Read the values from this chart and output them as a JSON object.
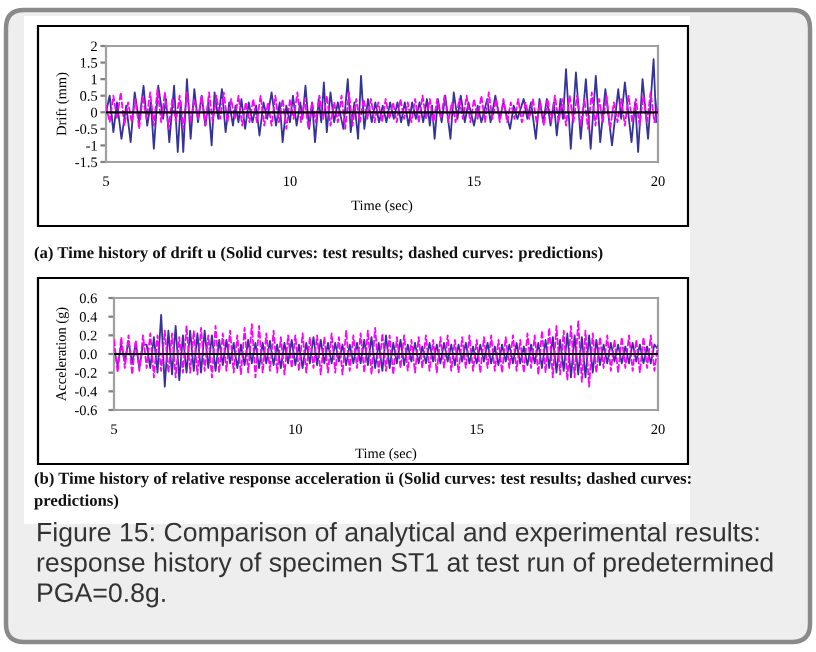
{
  "chart_data": [
    {
      "type": "line",
      "xlabel": "Time (sec)",
      "ylabel": "Drift (mm)",
      "xlim": [
        5,
        20
      ],
      "xticks": [
        5,
        10,
        15,
        20
      ],
      "ylim": [
        -1.5,
        2
      ],
      "yticks": [
        -1.5,
        -1,
        -0.5,
        0,
        0.5,
        1,
        1.5,
        2
      ],
      "line_style": "solid",
      "ref_lines": [
        {
          "axis": "y",
          "value": 0,
          "color": "#000000"
        }
      ],
      "annotations": [
        "(a) Time history of drift u (Solid curves: test results; dashed curves: predictions)"
      ],
      "x": [
        5,
        5.1,
        5.2,
        5.3,
        5.4,
        5.5,
        5.6,
        5.7,
        5.8,
        5.9,
        6,
        6.1,
        6.2,
        6.3,
        6.4,
        6.5,
        6.6,
        6.7,
        6.8,
        6.9,
        7,
        7.1,
        7.2,
        7.3,
        7.4,
        7.5,
        7.6,
        7.7,
        7.8,
        7.9,
        8,
        8.1,
        8.2,
        8.3,
        8.4,
        8.5,
        8.6,
        8.7,
        8.8,
        8.9,
        9,
        9.1,
        9.2,
        9.3,
        9.4,
        9.5,
        9.6,
        9.7,
        9.8,
        9.9,
        10,
        10.1,
        10.2,
        10.3,
        10.4,
        10.5,
        10.6,
        10.7,
        10.8,
        10.9,
        11,
        11.1,
        11.2,
        11.3,
        11.4,
        11.5,
        11.6,
        11.7,
        11.8,
        11.9,
        12,
        12.1,
        12.2,
        12.3,
        12.4,
        12.5,
        12.6,
        12.7,
        12.8,
        12.9,
        13,
        13.1,
        13.2,
        13.3,
        13.4,
        13.5,
        13.6,
        13.7,
        13.8,
        13.9,
        14,
        14.1,
        14.2,
        14.3,
        14.4,
        14.5,
        14.6,
        14.7,
        14.8,
        14.9,
        15,
        15.1,
        15.2,
        15.3,
        15.4,
        15.5,
        15.6,
        15.7,
        15.8,
        15.9,
        16,
        16.1,
        16.2,
        16.3,
        16.4,
        16.5,
        16.6,
        16.7,
        16.8,
        16.9,
        17,
        17.1,
        17.2,
        17.3,
        17.4,
        17.5,
        17.6,
        17.7,
        17.8,
        17.9,
        18,
        18.1,
        18.2,
        18.3,
        18.4,
        18.5,
        18.6,
        18.7,
        18.8,
        18.9,
        19,
        19.1,
        19.2,
        19.3,
        19.4,
        19.5,
        19.6,
        19.7,
        19.8,
        19.9,
        20
      ],
      "series": [
        {
          "color": "#333399",
          "x": [
            5,
            5.1,
            5.2,
            5.3,
            5.42,
            5.55,
            5.67,
            5.78,
            5.9,
            6.02,
            6.12,
            6.22,
            6.3,
            6.42,
            6.55,
            6.63,
            6.72,
            6.85,
            6.95,
            7.03,
            7.1,
            7.2,
            7.3,
            7.4,
            7.5,
            7.6,
            7.7,
            7.78,
            7.87,
            7.95,
            8.05,
            8.15,
            8.25,
            8.35,
            8.45,
            8.52,
            8.6,
            8.68,
            8.78,
            8.88,
            8.98,
            9.08,
            9.17,
            9.28,
            9.38,
            9.5,
            9.62,
            9.72,
            9.8,
            9.9,
            10,
            10.08,
            10.18,
            10.28,
            10.34,
            10.42,
            10.52,
            10.6,
            10.68,
            10.78,
            10.85,
            10.92,
            11,
            11.1,
            11.2,
            11.3,
            11.45,
            11.57,
            11.65,
            11.75,
            11.85,
            11.93,
            12.02,
            12.12,
            12.22,
            12.32,
            12.42,
            12.52,
            12.62,
            12.72,
            12.82,
            12.92,
            13.02,
            13.12,
            13.22,
            13.32,
            13.42,
            13.52,
            13.62,
            13.72,
            13.8,
            13.86,
            13.93,
            14.02,
            14.12,
            14.22,
            14.36,
            14.45,
            14.55,
            14.64,
            14.75,
            14.85,
            15,
            15.1,
            15.2,
            15.36,
            15.45,
            15.58,
            15.7,
            15.8,
            15.98,
            16.08,
            16.18,
            16.35,
            16.45,
            16.55,
            16.68,
            16.78,
            16.88,
            16.98,
            17.08,
            17.17,
            17.25,
            17.35,
            17.42,
            17.5,
            17.63,
            17.77,
            17.9,
            18.04,
            18.17,
            18.31,
            18.43,
            18.57,
            18.75,
            18.92,
            19,
            19.1,
            19.28,
            19.38,
            19.46,
            19.58,
            19.73,
            19.88,
            19.95,
            20
          ],
          "values": [
            0,
            0.5,
            -0.6,
            0.3,
            -0.8,
            0.2,
            -0.9,
            0.6,
            -0.3,
            0.8,
            -0.4,
            0.3,
            -1.1,
            0.8,
            -0.2,
            0.4,
            -0.9,
            0.8,
            -1.2,
            0.3,
            -1.2,
            1,
            -0.8,
            0.7,
            -0.3,
            0.5,
            -0.4,
            0.3,
            -1,
            0.6,
            -0.2,
            0.7,
            -0.6,
            0.3,
            -0.4,
            0.2,
            -0.3,
            0.4,
            -0.5,
            0.3,
            -0.3,
            0.2,
            -0.7,
            0.3,
            -0.2,
            0.6,
            -0.4,
            0.3,
            -0.9,
            0.2,
            -0.3,
            0.5,
            -0.4,
            0.3,
            -0.2,
            0.8,
            -0.5,
            0.3,
            -0.9,
            0.4,
            -0.3,
            0.9,
            -0.6,
            0.6,
            -0.3,
            0.3,
            -0.5,
            1,
            -0.6,
            0.3,
            -0.8,
            1.1,
            -0.5,
            0.4,
            -0.3,
            0.3,
            -0.3,
            0.2,
            -0.3,
            0.3,
            -0.2,
            0.3,
            -0.3,
            0.3,
            -0.4,
            0.3,
            -0.2,
            0.3,
            -0.3,
            0.4,
            -0.4,
            0.2,
            -0.8,
            0.4,
            -0.3,
            0.5,
            -0.8,
            0.6,
            -0.2,
            0.5,
            -0.3,
            0.3,
            -0.4,
            0.2,
            -0.3,
            0.4,
            -0.3,
            0.5,
            -0.2,
            0.3,
            -0.5,
            0.2,
            -0.2,
            0.4,
            -0.2,
            0.3,
            -0.8,
            0.4,
            -0.3,
            0.4,
            -0.4,
            0.3,
            -0.7,
            0.4,
            -0.2,
            1.3,
            -1.1,
            1.2,
            -0.8,
            1,
            -1.1,
            1.1,
            -0.9,
            0.7,
            -1,
            0.7,
            -0.2,
            0.9,
            -0.9,
            0.3,
            -1.2,
            1,
            -0.8,
            1.6,
            -0.3,
            0.5
          ]
        },
        {
          "color": "#ff00ff",
          "line_style": "dashed",
          "values": [
            0.2,
            -0.3,
            0.5,
            -0.2,
            0.6,
            -0.4,
            0.3,
            -0.3,
            0.4,
            -0.5,
            0.5,
            -0.2,
            0.6,
            -0.4,
            0.7,
            -0.3,
            0.6,
            -0.5,
            0.4,
            -0.3,
            0.5,
            -0.5,
            0.6,
            -0.3,
            0.4,
            -0.2,
            0.5,
            -0.4,
            0.6,
            -0.3,
            0.5,
            -0.2,
            0.6,
            -0.3,
            0.4,
            -0.2,
            0.5,
            -0.4,
            0.3,
            -0.3,
            0.4,
            -0.3,
            0.5,
            -0.4,
            0.3,
            -0.4,
            0.5,
            -0.3,
            0.4,
            -0.5,
            0.4,
            -0.2,
            0.6,
            -0.3,
            0.4,
            -0.5,
            0.3,
            -0.3,
            0.5,
            -0.2,
            0.5,
            -0.4,
            0.3,
            -0.3,
            0.5,
            -0.5,
            0.6,
            -0.4,
            0.4,
            -0.3,
            0.4,
            -0.2,
            0.4,
            -0.3,
            0.3,
            -0.3,
            0.4,
            -0.2,
            0.3,
            -0.3,
            0.4,
            -0.2,
            0.3,
            -0.3,
            0.4,
            -0.3,
            0.5,
            -0.2,
            0.4,
            -0.3,
            0.4,
            -0.2,
            0.5,
            -0.3,
            0.3,
            -0.3,
            0.4,
            -0.2,
            0.5,
            -0.3,
            0.4,
            -0.2,
            0.5,
            -0.3,
            0.6,
            -0.2,
            0.4,
            -0.3,
            0.4,
            -0.3,
            0.3,
            -0.2,
            0.4,
            -0.3,
            0.3,
            -0.2,
            0.4,
            -0.3,
            0.3,
            -0.4,
            0.4,
            -0.3,
            0.5,
            -0.3,
            0.4,
            -0.4,
            0.5,
            -0.3,
            0.5,
            -0.4,
            0.4,
            -0.5,
            0.6,
            -0.4,
            0.4,
            -0.3,
            0.5,
            -0.5,
            0.3,
            -0.3,
            0.4,
            -0.4,
            0.5,
            -0.3,
            0.4,
            -0.4,
            0.5,
            -0.3,
            0.6,
            -0.3,
            0.2
          ]
        }
      ]
    },
    {
      "type": "line",
      "xlabel": "Time (sec)",
      "ylabel": "Acceleration (g)",
      "xlim": [
        5,
        20
      ],
      "xticks": [
        5,
        10,
        15,
        20
      ],
      "ylim": [
        -0.6,
        0.6
      ],
      "yticks": [
        -0.6,
        -0.4,
        -0.2,
        {
          "value": 0,
          "label": "0.0"
        },
        0.2,
        0.4,
        0.6
      ],
      "line_style": "solid",
      "ref_lines": [
        {
          "axis": "y",
          "value": 0,
          "color": "#000000"
        }
      ],
      "annotations": [
        "(b) Time history of relative response acceleration ü (Solid curves: test results; dashed curves: predictions)",
        "Figure 15: Comparison of analytical and experimental results: response history of specimen ST1 at test run of predetermined PGA=0.8g."
      ],
      "x": [
        5,
        5.1,
        5.2,
        5.3,
        5.4,
        5.5,
        5.6,
        5.7,
        5.8,
        5.9,
        6,
        6.1,
        6.2,
        6.3,
        6.4,
        6.5,
        6.6,
        6.7,
        6.8,
        6.9,
        7,
        7.1,
        7.2,
        7.3,
        7.4,
        7.5,
        7.6,
        7.7,
        7.8,
        7.9,
        8,
        8.1,
        8.2,
        8.3,
        8.4,
        8.5,
        8.6,
        8.7,
        8.8,
        8.9,
        9,
        9.1,
        9.2,
        9.3,
        9.4,
        9.5,
        9.6,
        9.7,
        9.8,
        9.9,
        10,
        10.1,
        10.2,
        10.3,
        10.4,
        10.5,
        10.6,
        10.7,
        10.8,
        10.9,
        11,
        11.1,
        11.2,
        11.3,
        11.4,
        11.5,
        11.6,
        11.7,
        11.8,
        11.9,
        12,
        12.1,
        12.2,
        12.3,
        12.4,
        12.5,
        12.6,
        12.7,
        12.8,
        12.9,
        13,
        13.1,
        13.2,
        13.3,
        13.4,
        13.5,
        13.6,
        13.7,
        13.8,
        13.9,
        14,
        14.1,
        14.2,
        14.3,
        14.4,
        14.5,
        14.6,
        14.7,
        14.8,
        14.9,
        15,
        15.1,
        15.2,
        15.3,
        15.4,
        15.5,
        15.6,
        15.7,
        15.8,
        15.9,
        16,
        16.1,
        16.2,
        16.3,
        16.4,
        16.5,
        16.6,
        16.7,
        16.8,
        16.9,
        17,
        17.1,
        17.2,
        17.3,
        17.4,
        17.5,
        17.6,
        17.7,
        17.8,
        17.9,
        18,
        18.1,
        18.2,
        18.3,
        18.4,
        18.5,
        18.6,
        18.7,
        18.8,
        18.9,
        19,
        19.1,
        19.2,
        19.3,
        19.4,
        19.5,
        19.6,
        19.7,
        19.8,
        19.9,
        20
      ],
      "series": [
        {
          "color": "#333399",
          "values": [
            0.05,
            -0.12,
            0.1,
            -0.08,
            0.14,
            -0.1,
            0.12,
            -0.15,
            0.1,
            0.1,
            -0.15,
            0.18,
            -0.2,
            0.42,
            -0.35,
            0.25,
            -0.22,
            0.3,
            -0.28,
            0.2,
            -0.2,
            0.25,
            -0.18,
            0.22,
            -0.2,
            0.25,
            -0.15,
            0.2,
            -0.18,
            0.15,
            -0.12,
            0.15,
            -0.1,
            0.12,
            -0.15,
            0.1,
            -0.12,
            0.15,
            -0.1,
            0.12,
            -0.15,
            0.12,
            -0.1,
            0.14,
            -0.12,
            0.1,
            -0.15,
            0.12,
            -0.1,
            0.15,
            -0.12,
            0.1,
            -0.15,
            0.12,
            -0.1,
            0.18,
            -0.12,
            0.15,
            -0.1,
            0.12,
            -0.1,
            0.12,
            -0.08,
            0.1,
            -0.12,
            0.1,
            -0.1,
            0.12,
            -0.1,
            0.15,
            -0.12,
            0.18,
            -0.15,
            0.12,
            -0.18,
            0.2,
            -0.15,
            0.12,
            -0.1,
            0.15,
            -0.12,
            0.1,
            -0.08,
            0.12,
            -0.1,
            0.08,
            -0.1,
            0.12,
            -0.08,
            0.1,
            -0.1,
            0.12,
            -0.08,
            0.1,
            -0.12,
            0.1,
            -0.08,
            0.12,
            -0.1,
            0.08,
            -0.1,
            0.1,
            -0.08,
            0.12,
            -0.1,
            0.08,
            -0.12,
            0.1,
            -0.08,
            0.1,
            -0.1,
            0.12,
            -0.1,
            0.08,
            -0.12,
            0.1,
            -0.1,
            0.12,
            -0.15,
            0.15,
            -0.15,
            0.18,
            -0.2,
            0.15,
            -0.18,
            0.22,
            -0.25,
            0.2,
            -0.22,
            0.18,
            -0.25,
            0.2,
            -0.2,
            0.15,
            -0.12,
            0.1,
            -0.1,
            0.12,
            -0.08,
            0.1,
            -0.1,
            0.08,
            -0.1,
            0.12,
            -0.08,
            0.1,
            -0.1,
            0.08,
            -0.1,
            0.1,
            0.05
          ]
        },
        {
          "color": "#ff00ff",
          "line_style": "dashed",
          "values": [
            0.15,
            -0.2,
            0.18,
            -0.15,
            0.2,
            -0.22,
            0.15,
            -0.18,
            0.2,
            -0.15,
            0.22,
            -0.25,
            0.2,
            -0.18,
            0.25,
            -0.2,
            0.22,
            -0.25,
            0.18,
            -0.2,
            0.3,
            -0.2,
            0.25,
            -0.22,
            0.28,
            -0.18,
            0.2,
            -0.25,
            0.3,
            -0.2,
            0.22,
            -0.18,
            0.25,
            -0.2,
            0.2,
            -0.22,
            0.28,
            -0.2,
            0.32,
            -0.25,
            0.3,
            -0.2,
            0.22,
            -0.18,
            0.25,
            -0.2,
            0.18,
            -0.22,
            0.2,
            -0.15,
            0.2,
            -0.18,
            0.22,
            -0.2,
            0.18,
            -0.15,
            0.2,
            -0.22,
            0.18,
            -0.2,
            0.22,
            -0.2,
            0.18,
            -0.22,
            0.25,
            -0.18,
            0.2,
            -0.15,
            0.22,
            -0.2,
            0.25,
            -0.22,
            0.28,
            -0.2,
            0.22,
            -0.18,
            0.2,
            -0.22,
            0.18,
            -0.15,
            0.2,
            -0.18,
            0.15,
            -0.2,
            0.18,
            -0.15,
            0.2,
            -0.18,
            0.15,
            -0.2,
            0.18,
            -0.15,
            0.2,
            -0.18,
            0.15,
            -0.2,
            0.18,
            -0.15,
            0.2,
            -0.18,
            0.15,
            -0.2,
            0.18,
            -0.15,
            0.2,
            -0.18,
            0.15,
            -0.2,
            0.18,
            -0.15,
            0.2,
            -0.18,
            0.15,
            -0.2,
            0.22,
            -0.15,
            0.2,
            -0.22,
            0.25,
            -0.2,
            0.28,
            -0.25,
            0.3,
            -0.22,
            0.25,
            -0.28,
            0.3,
            -0.25,
            0.35,
            -0.3,
            0.25,
            -0.35,
            0.22,
            -0.2,
            0.18,
            -0.15,
            0.2,
            -0.18,
            0.15,
            -0.2,
            0.18,
            -0.15,
            0.2,
            -0.18,
            0.15,
            -0.2,
            0.18,
            -0.15,
            0.2,
            -0.18,
            0.1
          ]
        }
      ]
    }
  ]
}
